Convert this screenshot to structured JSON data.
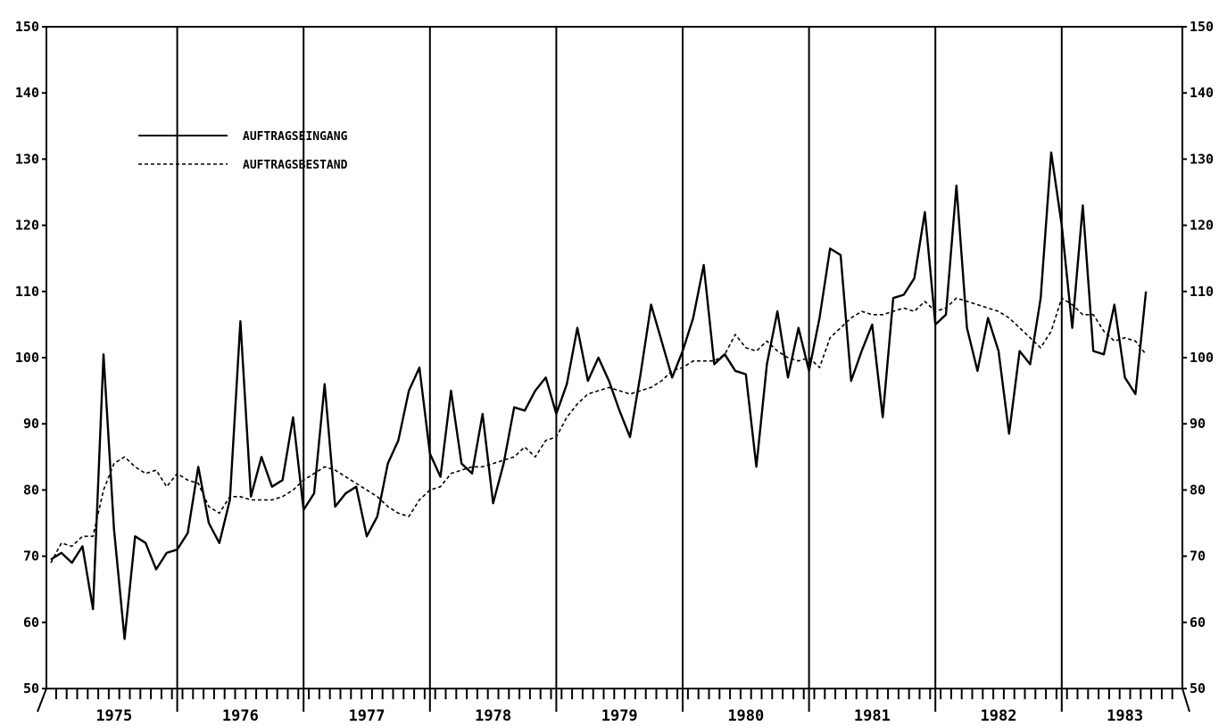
{
  "chart_data": {
    "type": "line",
    "title": "",
    "xlabel": "",
    "ylabel": "",
    "x_range": [
      1975,
      1983
    ],
    "years": [
      "1975",
      "1976",
      "1977",
      "1978",
      "1979",
      "1980",
      "1981",
      "1982",
      "1983"
    ],
    "y_left": {
      "ylim": [
        50,
        150
      ],
      "ticks": [
        50,
        60,
        70,
        80,
        90,
        100,
        110,
        120,
        130,
        140,
        150
      ]
    },
    "y_right": {
      "ylim": [
        50,
        150
      ],
      "ticks": [
        50,
        60,
        70,
        80,
        90,
        100,
        110,
        120,
        130,
        140,
        150
      ]
    },
    "grid": "vertical lines at year boundaries",
    "legend_placement": "top-left",
    "series": [
      {
        "name": "AUFTRAGSEINGANG",
        "style": "solid",
        "color": "#000000",
        "x_start": "1975-01",
        "values": [
          69.5,
          70.5,
          69,
          71.5,
          62,
          100.5,
          74,
          57.5,
          73,
          72,
          68,
          70.5,
          71,
          73.5,
          83.5,
          75,
          72,
          78.5,
          105.5,
          79,
          85,
          80.5,
          81.5,
          91,
          77,
          79.5,
          96,
          77.5,
          79.5,
          80.5,
          73,
          76,
          84,
          87.5,
          95,
          98.5,
          85.5,
          82,
          95,
          84,
          82.5,
          91.5,
          78,
          84,
          92.5,
          92,
          95,
          97,
          91.5,
          96,
          104.5,
          96.5,
          100,
          96.5,
          92,
          88,
          97.5,
          108,
          102.5,
          97,
          101,
          106,
          114,
          99,
          100.5,
          98,
          97.5,
          83.5,
          99,
          107,
          97,
          104.5,
          98,
          106,
          116.5,
          115.5,
          96.5,
          101,
          105,
          91,
          109,
          109.5,
          112,
          122,
          105,
          106.5,
          126,
          104.5,
          98,
          106,
          101,
          88.5,
          101,
          99,
          109,
          131,
          120,
          104.5,
          123,
          101,
          100.5,
          108,
          97,
          94.5,
          110
        ]
      },
      {
        "name": "AUFTRAGSBESTAND",
        "style": "dashed",
        "color": "#000000",
        "x_start": "1975-01",
        "values": [
          69,
          72,
          71.5,
          73,
          73,
          80,
          84,
          85,
          83.5,
          82.5,
          83,
          80.5,
          82.5,
          81.5,
          81,
          77.5,
          76.5,
          79,
          79,
          78.5,
          78.5,
          78.5,
          79,
          80,
          81.5,
          82.5,
          83.5,
          83,
          82,
          81,
          80,
          79,
          77.5,
          76.5,
          76,
          78.5,
          80,
          80.5,
          82.5,
          83,
          83.5,
          83.5,
          84,
          84.5,
          85,
          86.5,
          85,
          87.5,
          88,
          91,
          93,
          94.5,
          95,
          95.5,
          95,
          94.5,
          95,
          95.5,
          96.5,
          98,
          98.5,
          99.5,
          99.5,
          99.5,
          100.5,
          103.5,
          101.5,
          101,
          102.5,
          101,
          100,
          99.5,
          100,
          98.5,
          103,
          104.5,
          106,
          107,
          106.5,
          106.5,
          107,
          107.5,
          107,
          108.5,
          107,
          107.5,
          109,
          108.5,
          108,
          107.5,
          107,
          106,
          104.5,
          103,
          101.5,
          104,
          109,
          108,
          106.5,
          106.5,
          104,
          102.5,
          103,
          102.5,
          100.5
        ]
      }
    ]
  }
}
